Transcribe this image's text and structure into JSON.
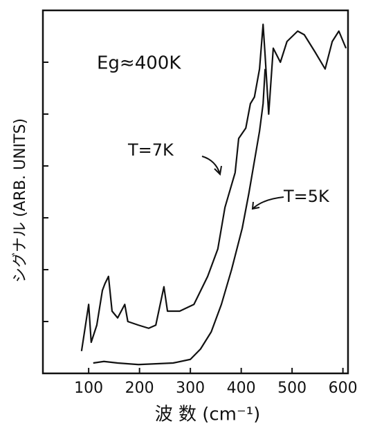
{
  "chart_data": {
    "type": "line",
    "y_label": "シグナル (ARB. UNITS)",
    "x_label": "波 数 (cm⁻¹)",
    "annotations": [
      "Eg≈400K",
      "T=7K",
      "T=5K"
    ],
    "xlim": [
      10,
      610
    ],
    "xticks": [
      100,
      200,
      300,
      400,
      500,
      600
    ],
    "ylim": [
      0,
      7
    ],
    "yticks": [
      1,
      2,
      3,
      4,
      5,
      6
    ],
    "series": [
      {
        "name": "T=7K",
        "color": "#111111",
        "x": [
          86,
          100,
          105,
          116,
          127,
          132,
          139,
          146,
          157,
          171,
          177,
          198,
          218,
          232,
          248,
          255,
          279,
          307,
          334,
          354,
          368,
          388,
          395,
          409,
          418,
          426,
          436,
          443,
          447,
          454,
          463,
          477,
          490,
          511,
          524,
          545,
          565,
          579,
          592,
          606
        ],
        "values": [
          0.43,
          1.33,
          0.6,
          0.93,
          1.6,
          1.73,
          1.87,
          1.2,
          1.07,
          1.33,
          1.0,
          0.93,
          0.87,
          0.93,
          1.67,
          1.2,
          1.2,
          1.33,
          1.87,
          2.4,
          3.2,
          3.87,
          4.53,
          4.73,
          5.2,
          5.33,
          5.87,
          6.73,
          6.13,
          5.0,
          6.27,
          6.0,
          6.4,
          6.6,
          6.53,
          6.2,
          5.87,
          6.4,
          6.6,
          6.27
        ]
      },
      {
        "name": "T=5K",
        "color": "#111111",
        "x": [
          109,
          130,
          157,
          198,
          266,
          300,
          320,
          341,
          361,
          381,
          402,
          415,
          429,
          436,
          443,
          447
        ],
        "values": [
          0.2,
          0.23,
          0.2,
          0.17,
          0.2,
          0.27,
          0.47,
          0.8,
          1.33,
          2.0,
          2.8,
          3.47,
          4.27,
          4.67,
          5.2,
          5.87
        ]
      }
    ]
  }
}
